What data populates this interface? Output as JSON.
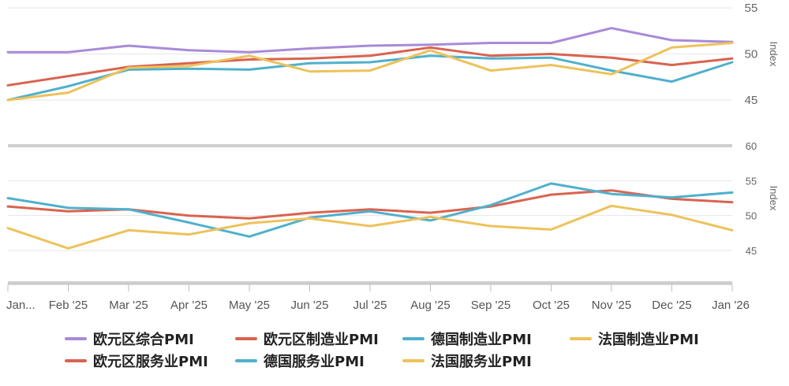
{
  "chart_data": {
    "type": "line",
    "categories": [
      "Jan...",
      "Feb '25",
      "Mar '25",
      "Apr '25",
      "May '25",
      "Jun '25",
      "Jul '25",
      "Aug '25",
      "Sep '25",
      "Oct '25",
      "Nov '25",
      "Dec '25",
      "Jan '26"
    ],
    "panels": [
      {
        "ylabel": "Index",
        "ylim": [
          43,
          57
        ],
        "yticks": [
          45,
          50,
          55
        ],
        "grid": true,
        "series": [
          {
            "name": "欧元区综合PMI",
            "color": "#a98ad8",
            "values": [
              50.2,
              50.2,
              50.9,
              50.4,
              50.2,
              50.6,
              50.9,
              51.0,
              51.2,
              51.2,
              52.8,
              51.5,
              51.3
            ]
          },
          {
            "name": "欧元区制造业PMI",
            "color": "#d9634f",
            "values": [
              46.6,
              47.6,
              48.6,
              49.0,
              49.4,
              49.5,
              49.8,
              50.7,
              49.8,
              50.0,
              49.6,
              48.8,
              49.5
            ]
          },
          {
            "name": "德国制造业PMI",
            "color": "#4fb0cc",
            "values": [
              45.0,
              46.5,
              48.3,
              48.4,
              48.3,
              49.0,
              49.1,
              49.8,
              49.5,
              49.6,
              48.2,
              47.0,
              49.1
            ]
          },
          {
            "name": "法国制造业PMI",
            "color": "#edc25b",
            "values": [
              45.0,
              45.8,
              48.5,
              48.7,
              49.8,
              48.1,
              48.2,
              50.4,
              48.2,
              48.8,
              47.8,
              50.7,
              51.2
            ]
          }
        ]
      },
      {
        "ylabel": "Index",
        "ylim": [
          41,
          60
        ],
        "yticks": [
          45,
          50,
          55,
          60
        ],
        "grid": true,
        "series": [
          {
            "name": "欧元区服务业PMI",
            "color": "#d9634f",
            "values": [
              51.3,
              50.6,
              50.9,
              50.0,
              49.6,
              50.4,
              50.9,
              50.4,
              51.3,
              53.0,
              53.6,
              52.4,
              51.9
            ]
          },
          {
            "name": "德国服务业PMI",
            "color": "#4fb0cc",
            "values": [
              52.5,
              51.1,
              50.9,
              49.0,
              47.0,
              49.7,
              50.6,
              49.3,
              51.5,
              54.6,
              53.1,
              52.6,
              53.3
            ]
          },
          {
            "name": "法国服务业PMI",
            "color": "#edc25b",
            "values": [
              48.2,
              45.3,
              47.9,
              47.3,
              48.9,
              49.6,
              48.5,
              49.8,
              48.5,
              48.0,
              51.4,
              50.1,
              47.9
            ]
          }
        ]
      }
    ],
    "legend_position": "bottom",
    "legend_order": [
      "欧元区综合PMI",
      "欧元区制造业PMI",
      "德国制造业PMI",
      "法国制造业PMI",
      "欧元区服务业PMI",
      "德国服务业PMI",
      "法国服务业PMI"
    ]
  }
}
